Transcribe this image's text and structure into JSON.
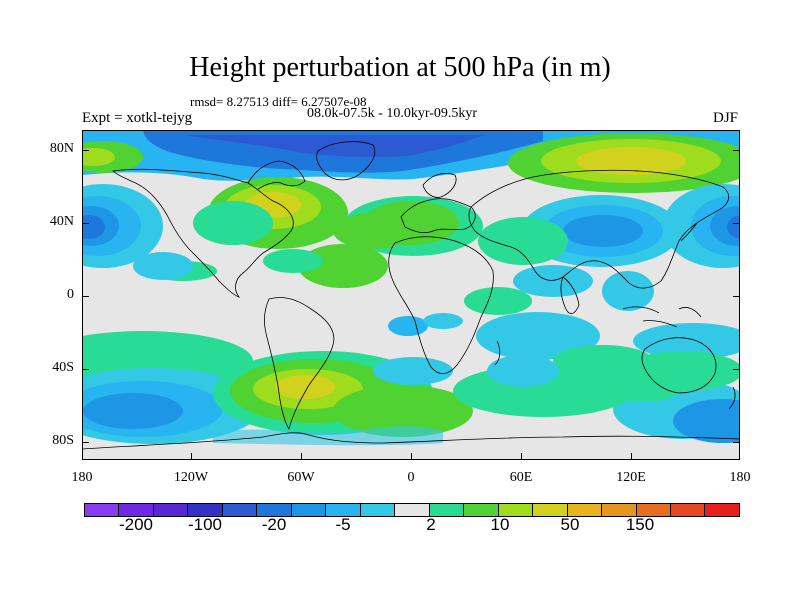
{
  "title": "Height perturbation at 500 hPa (in m)",
  "stats": "rmsd= 8.27513 diff= 6.27507e-08",
  "experiment": "Expt = xotkl-tejyg",
  "period": "08.0k-07.5k - 10.0kyr-09.5kyr",
  "season": "DJF",
  "map": {
    "projection": "cylindrical-equidistant",
    "lat_labels": [
      "80N",
      "40N",
      "0",
      "40S",
      "80S"
    ],
    "lon_labels": [
      "180",
      "120W",
      "60W",
      "0",
      "60E",
      "120E",
      "180"
    ],
    "background_color": "#e6e6e6"
  },
  "colorbar": {
    "colors": [
      "#8c3cf0",
      "#6e28e6",
      "#5a28d2",
      "#3232c8",
      "#2c5ad2",
      "#1e78dc",
      "#1e96e6",
      "#28b4f0",
      "#32c8e6",
      "#e6e6e6",
      "#28dc96",
      "#50d232",
      "#a0dc1e",
      "#d2d21e",
      "#e6b41e",
      "#e6961e",
      "#e66e1e",
      "#e64620",
      "#e61e1e"
    ],
    "labels": [
      "-200",
      "-100",
      "-20",
      "-5",
      "2",
      "10",
      "50",
      "150"
    ]
  }
}
